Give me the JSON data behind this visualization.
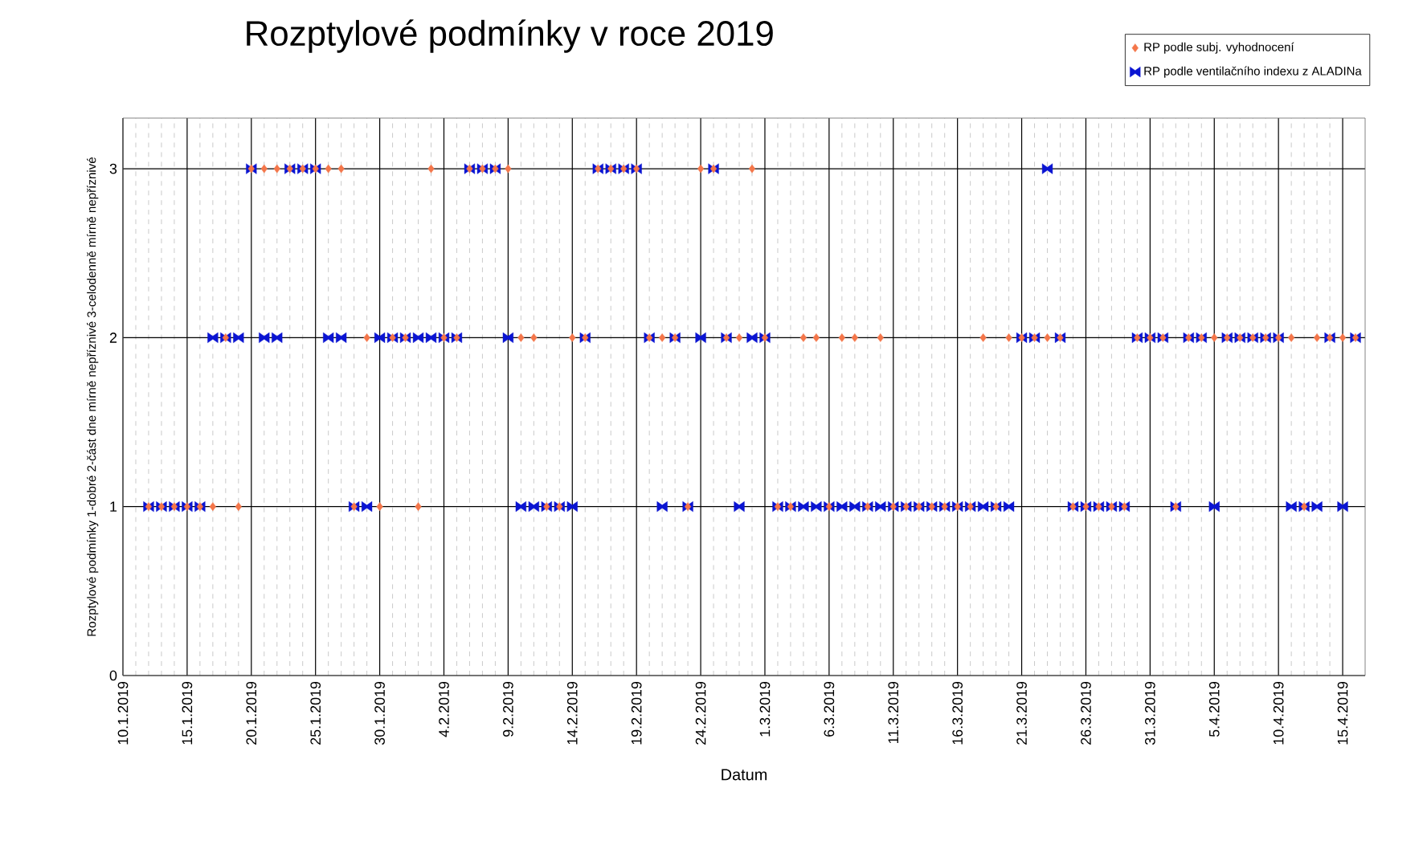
{
  "chart_data": {
    "type": "scatter",
    "title": "Rozptylové podmínky v roce 2019",
    "xlabel": "Datum",
    "ylabel": "Rozptylové podmínky 1-dobré 2-část dne mírně nepříznivé 3-celodenně mírně nepříznivé",
    "xlim": [
      "2019-01-10",
      "2019-04-16T18:00"
    ],
    "ylim": [
      0,
      3.3
    ],
    "yticks": [
      0,
      1,
      2,
      3
    ],
    "xticks": [
      {
        "value": "2019-01-10",
        "label": "10.1.2019"
      },
      {
        "value": "2019-01-15",
        "label": "15.1.2019"
      },
      {
        "value": "2019-01-20",
        "label": "20.1.2019"
      },
      {
        "value": "2019-01-25",
        "label": "25.1.2019"
      },
      {
        "value": "2019-01-30",
        "label": "30.1.2019"
      },
      {
        "value": "2019-02-04",
        "label": "4.2.2019"
      },
      {
        "value": "2019-02-09",
        "label": "9.2.2019"
      },
      {
        "value": "2019-02-14",
        "label": "14.2.2019"
      },
      {
        "value": "2019-02-19",
        "label": "19.2.2019"
      },
      {
        "value": "2019-02-24",
        "label": "24.2.2019"
      },
      {
        "value": "2019-03-01",
        "label": "1.3.2019"
      },
      {
        "value": "2019-03-06",
        "label": "6.3.2019"
      },
      {
        "value": "2019-03-11",
        "label": "11.3.2019"
      },
      {
        "value": "2019-03-16",
        "label": "16.3.2019"
      },
      {
        "value": "2019-03-21",
        "label": "21.3.2019"
      },
      {
        "value": "2019-03-26",
        "label": "26.3.2019"
      },
      {
        "value": "2019-03-31",
        "label": "31.3.2019"
      },
      {
        "value": "2019-04-05",
        "label": "5.4.2019"
      },
      {
        "value": "2019-04-10",
        "label": "10.4.2019"
      },
      {
        "value": "2019-04-15",
        "label": "15.4.2019"
      }
    ],
    "grid": true,
    "legend": "top right",
    "series": [
      {
        "name": "RP podle subj. vyhodnocení",
        "color": "#f4764a",
        "marker": "diamond",
        "x": [
          "2019-01-12",
          "2019-01-13",
          "2019-01-14",
          "2019-01-15",
          "2019-01-16",
          "2019-01-17",
          "2019-01-19",
          "2019-01-28",
          "2019-01-30",
          "2019-02-02",
          "2019-02-12",
          "2019-02-13",
          "2019-02-23",
          "2019-03-02",
          "2019-03-03",
          "2019-03-06",
          "2019-03-09",
          "2019-03-11",
          "2019-03-12",
          "2019-03-13",
          "2019-03-14",
          "2019-03-15",
          "2019-03-16",
          "2019-03-17",
          "2019-03-19",
          "2019-03-25",
          "2019-03-26",
          "2019-03-27",
          "2019-03-28",
          "2019-03-29",
          "2019-04-02",
          "2019-04-12",
          "2019-01-18",
          "2019-01-29",
          "2019-01-31",
          "2019-02-01",
          "2019-02-04",
          "2019-02-05",
          "2019-02-10",
          "2019-02-11",
          "2019-02-14",
          "2019-02-15",
          "2019-02-20",
          "2019-02-21",
          "2019-02-22",
          "2019-02-26",
          "2019-02-27",
          "2019-03-01",
          "2019-03-04",
          "2019-03-05",
          "2019-03-07",
          "2019-03-08",
          "2019-03-10",
          "2019-03-18",
          "2019-03-20",
          "2019-03-21",
          "2019-03-22",
          "2019-03-23",
          "2019-03-24",
          "2019-03-30",
          "2019-03-31",
          "2019-04-01",
          "2019-04-03",
          "2019-04-04",
          "2019-04-05",
          "2019-04-06",
          "2019-04-07",
          "2019-04-08",
          "2019-04-09",
          "2019-04-10",
          "2019-04-11",
          "2019-04-13",
          "2019-04-14",
          "2019-04-15",
          "2019-04-16",
          "2019-01-20",
          "2019-01-21",
          "2019-01-22",
          "2019-01-23",
          "2019-01-24",
          "2019-01-25",
          "2019-01-26",
          "2019-01-27",
          "2019-02-03",
          "2019-02-06",
          "2019-02-07",
          "2019-02-08",
          "2019-02-09",
          "2019-02-16",
          "2019-02-17",
          "2019-02-18",
          "2019-02-19",
          "2019-02-24",
          "2019-02-25",
          "2019-02-28"
        ],
        "values": [
          1,
          1,
          1,
          1,
          1,
          1,
          1,
          1,
          1,
          1,
          1,
          1,
          1,
          1,
          1,
          1,
          1,
          1,
          1,
          1,
          1,
          1,
          1,
          1,
          1,
          1,
          1,
          1,
          1,
          1,
          1,
          1,
          2,
          2,
          2,
          2,
          2,
          2,
          2,
          2,
          2,
          2,
          2,
          2,
          2,
          2,
          2,
          2,
          2,
          2,
          2,
          2,
          2,
          2,
          2,
          2,
          2,
          2,
          2,
          2,
          2,
          2,
          2,
          2,
          2,
          2,
          2,
          2,
          2,
          2,
          2,
          2,
          2,
          2,
          2,
          3,
          3,
          3,
          3,
          3,
          3,
          3,
          3,
          3,
          3,
          3,
          3,
          3,
          3,
          3,
          3,
          3,
          3,
          3,
          3
        ]
      },
      {
        "name": "RP podle ventilačního indexu z ALADINa",
        "color": "#0a14d2",
        "marker": "triangle",
        "x": [
          "2019-01-12",
          "2019-01-13",
          "2019-01-14",
          "2019-01-15",
          "2019-01-16",
          "2019-01-28",
          "2019-01-29",
          "2019-02-10",
          "2019-02-11",
          "2019-02-12",
          "2019-02-13",
          "2019-02-14",
          "2019-02-21",
          "2019-02-23",
          "2019-02-27",
          "2019-03-02",
          "2019-03-03",
          "2019-03-04",
          "2019-03-05",
          "2019-03-06",
          "2019-03-07",
          "2019-03-08",
          "2019-03-09",
          "2019-03-10",
          "2019-03-11",
          "2019-03-12",
          "2019-03-13",
          "2019-03-14",
          "2019-03-15",
          "2019-03-16",
          "2019-03-17",
          "2019-03-18",
          "2019-03-19",
          "2019-03-20",
          "2019-03-25",
          "2019-03-26",
          "2019-03-27",
          "2019-03-28",
          "2019-03-29",
          "2019-04-02",
          "2019-04-05",
          "2019-04-11",
          "2019-04-12",
          "2019-04-13",
          "2019-04-15",
          "2019-01-17",
          "2019-01-18",
          "2019-01-19",
          "2019-01-21",
          "2019-01-22",
          "2019-01-26",
          "2019-01-27",
          "2019-01-30",
          "2019-01-31",
          "2019-02-01",
          "2019-02-02",
          "2019-02-03",
          "2019-02-04",
          "2019-02-05",
          "2019-02-09",
          "2019-02-15",
          "2019-02-20",
          "2019-02-22",
          "2019-02-24",
          "2019-02-26",
          "2019-02-28",
          "2019-03-01",
          "2019-03-21",
          "2019-03-22",
          "2019-03-24",
          "2019-03-30",
          "2019-03-31",
          "2019-04-01",
          "2019-04-03",
          "2019-04-04",
          "2019-04-06",
          "2019-04-07",
          "2019-04-08",
          "2019-04-09",
          "2019-04-10",
          "2019-04-14",
          "2019-04-16",
          "2019-01-20",
          "2019-01-23",
          "2019-01-24",
          "2019-01-25",
          "2019-02-06",
          "2019-02-07",
          "2019-02-08",
          "2019-02-16",
          "2019-02-17",
          "2019-02-18",
          "2019-02-19",
          "2019-02-25",
          "2019-03-23"
        ],
        "values": [
          1,
          1,
          1,
          1,
          1,
          1,
          1,
          1,
          1,
          1,
          1,
          1,
          1,
          1,
          1,
          1,
          1,
          1,
          1,
          1,
          1,
          1,
          1,
          1,
          1,
          1,
          1,
          1,
          1,
          1,
          1,
          1,
          1,
          1,
          1,
          1,
          1,
          1,
          1,
          1,
          1,
          1,
          1,
          1,
          1,
          2,
          2,
          2,
          2,
          2,
          2,
          2,
          2,
          2,
          2,
          2,
          2,
          2,
          2,
          2,
          2,
          2,
          2,
          2,
          2,
          2,
          2,
          2,
          2,
          2,
          2,
          2,
          2,
          2,
          2,
          2,
          2,
          2,
          2,
          2,
          2,
          2,
          3,
          3,
          3,
          3,
          3,
          3,
          3,
          3,
          3,
          3,
          3,
          3,
          3
        ]
      }
    ]
  }
}
